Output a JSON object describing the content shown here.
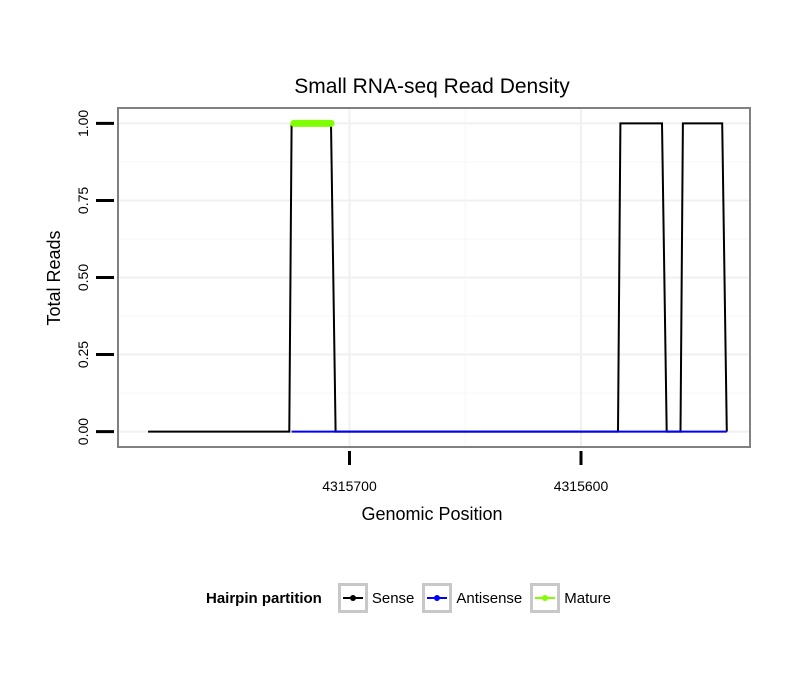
{
  "chart_data": {
    "type": "line",
    "title": "Small RNA-seq Read Density",
    "xlabel": "Genomic Position",
    "ylabel": "Total Reads",
    "x_reversed": true,
    "xlim": [
      4315800,
      4315527
    ],
    "ylim": [
      -0.05,
      1.05
    ],
    "x_ticks": [
      4315700,
      4315600
    ],
    "x_tick_labels": [
      "4315700",
      "4315600"
    ],
    "y_ticks": [
      0,
      0.25,
      0.5,
      0.75,
      1.0
    ],
    "y_tick_labels": [
      "0.00",
      "0.25",
      "0.50",
      "0.75",
      "1.00"
    ],
    "grid": true,
    "legend_position": "bottom",
    "legend_title": "Hairpin partition",
    "series": [
      {
        "name": "Sense",
        "color": "#000000",
        "points": [
          [
            4315787,
            0
          ],
          [
            4315726,
            0
          ],
          [
            4315725,
            1
          ],
          [
            4315708,
            1
          ],
          [
            4315706,
            0
          ],
          [
            4315584,
            0
          ],
          [
            4315583,
            1
          ],
          [
            4315565,
            1
          ],
          [
            4315563,
            0
          ],
          [
            4315557,
            0
          ],
          [
            4315556,
            1
          ],
          [
            4315539,
            1
          ],
          [
            4315537,
            0
          ]
        ]
      },
      {
        "name": "Antisense",
        "color": "#0000ff",
        "points": [
          [
            4315725,
            0
          ],
          [
            4315706,
            0
          ],
          [
            4315583,
            0
          ],
          [
            4315563,
            0
          ],
          [
            4315556,
            0
          ],
          [
            4315537,
            0
          ]
        ]
      },
      {
        "name": "Mature",
        "color": "#7fff00",
        "points": [
          [
            4315724,
            1
          ],
          [
            4315708,
            1
          ]
        ]
      }
    ]
  }
}
